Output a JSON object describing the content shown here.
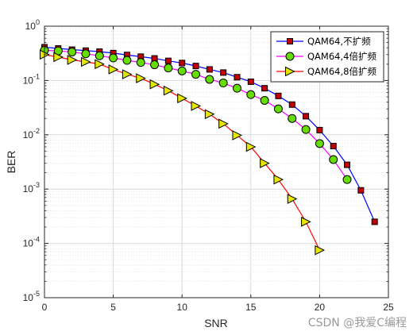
{
  "chart_data": {
    "type": "line",
    "xlabel": "SNR",
    "ylabel": "BER",
    "xlim": [
      0,
      25
    ],
    "ylim": [
      1e-05,
      1
    ],
    "yscale": "log",
    "grid": true,
    "x_ticks": [
      0,
      5,
      10,
      15,
      20,
      25
    ],
    "y_ticks": [
      {
        "value": 1,
        "base": "10",
        "exp": "0"
      },
      {
        "value": 0.1,
        "base": "10",
        "exp": "-1"
      },
      {
        "value": 0.01,
        "base": "10",
        "exp": "-2"
      },
      {
        "value": 0.001,
        "base": "10",
        "exp": "-3"
      },
      {
        "value": 0.0001,
        "base": "10",
        "exp": "-4"
      },
      {
        "value": 1e-05,
        "base": "10",
        "exp": "-5"
      }
    ],
    "legend_position": "top-right",
    "series": [
      {
        "name": "QAM64,不扩频",
        "color": "#0000ff",
        "marker": "square",
        "marker_color": "#c00000",
        "x": [
          0,
          1,
          2,
          3,
          4,
          5,
          6,
          7,
          8,
          9,
          10,
          11,
          12,
          13,
          14,
          15,
          16,
          17,
          18,
          19,
          20,
          21,
          22,
          23,
          24
        ],
        "y": [
          0.41,
          0.39,
          0.37,
          0.355,
          0.34,
          0.32,
          0.295,
          0.275,
          0.255,
          0.23,
          0.21,
          0.185,
          0.16,
          0.14,
          0.115,
          0.095,
          0.072,
          0.052,
          0.036,
          0.022,
          0.0122,
          0.0062,
          0.0028,
          0.00095,
          0.00025
        ]
      },
      {
        "name": "QAM64,4倍扩频",
        "color": "#ff00ff",
        "marker": "circle",
        "marker_color": "#66dd00",
        "x": [
          0,
          1,
          2,
          3,
          4,
          5,
          6,
          7,
          8,
          9,
          10,
          11,
          12,
          13,
          14,
          15,
          16,
          17,
          18,
          19,
          20,
          21,
          22
        ],
        "y": [
          0.36,
          0.35,
          0.335,
          0.31,
          0.285,
          0.26,
          0.235,
          0.215,
          0.195,
          0.17,
          0.15,
          0.13,
          0.105,
          0.09,
          0.072,
          0.055,
          0.043,
          0.03,
          0.02,
          0.0125,
          0.0069,
          0.0035,
          0.0015
        ]
      },
      {
        "name": "QAM64,8倍扩频",
        "color": "#ff0000",
        "marker": "triangle-right",
        "marker_color": "#e6e600",
        "x": [
          0,
          1,
          2,
          3,
          4,
          5,
          6,
          7,
          8,
          9,
          10,
          11,
          12,
          13,
          14,
          15,
          16,
          17,
          18,
          19,
          20
        ],
        "y": [
          0.3,
          0.27,
          0.24,
          0.22,
          0.2,
          0.16,
          0.13,
          0.11,
          0.085,
          0.065,
          0.047,
          0.034,
          0.024,
          0.016,
          0.0098,
          0.006,
          0.003,
          0.0015,
          0.00066,
          0.00025,
          7.5e-05
        ]
      }
    ]
  },
  "watermark": "CSDN @我爱C编程"
}
